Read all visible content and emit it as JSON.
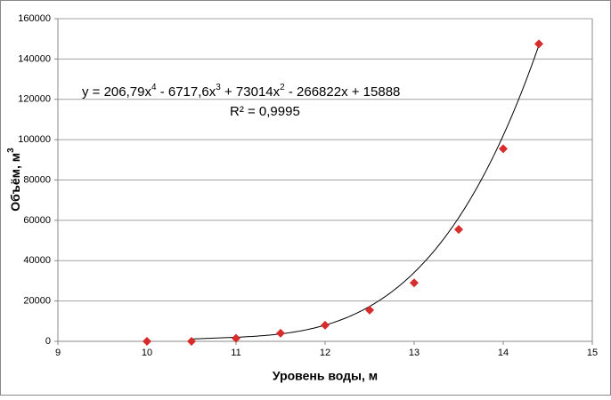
{
  "chart_data": {
    "type": "scatter",
    "x_label": "Уровень воды, м",
    "y_label": "Объём, м",
    "y_label_sup": "3",
    "series": [
      {
        "name": "Объём",
        "color": "#d62c2c",
        "x": [
          10,
          10.5,
          11,
          11.5,
          12,
          12.5,
          13,
          13.5,
          14,
          14.4
        ],
        "values": [
          0,
          0,
          1500,
          4000,
          8000,
          15500,
          29000,
          55500,
          95500,
          147500
        ]
      }
    ],
    "trendline": {
      "coefficients": [
        206.79,
        -6717.6,
        73014,
        -266822,
        15888
      ],
      "xlim": [
        10.5,
        14.4
      ],
      "color": "#000000",
      "equation": [
        "y = 206,79x",
        "4",
        " - 6717,6x",
        "3",
        " + 73014x",
        "2",
        " - 266822x + 15888"
      ],
      "r_squared": "R² = 0,9995"
    },
    "xlim": [
      9,
      15
    ],
    "xticks": [
      9,
      10,
      11,
      12,
      13,
      14,
      15
    ],
    "ylim": [
      0,
      160000
    ],
    "yticks": [
      0,
      20000,
      40000,
      60000,
      80000,
      100000,
      120000,
      140000,
      160000
    ],
    "grid": true
  }
}
